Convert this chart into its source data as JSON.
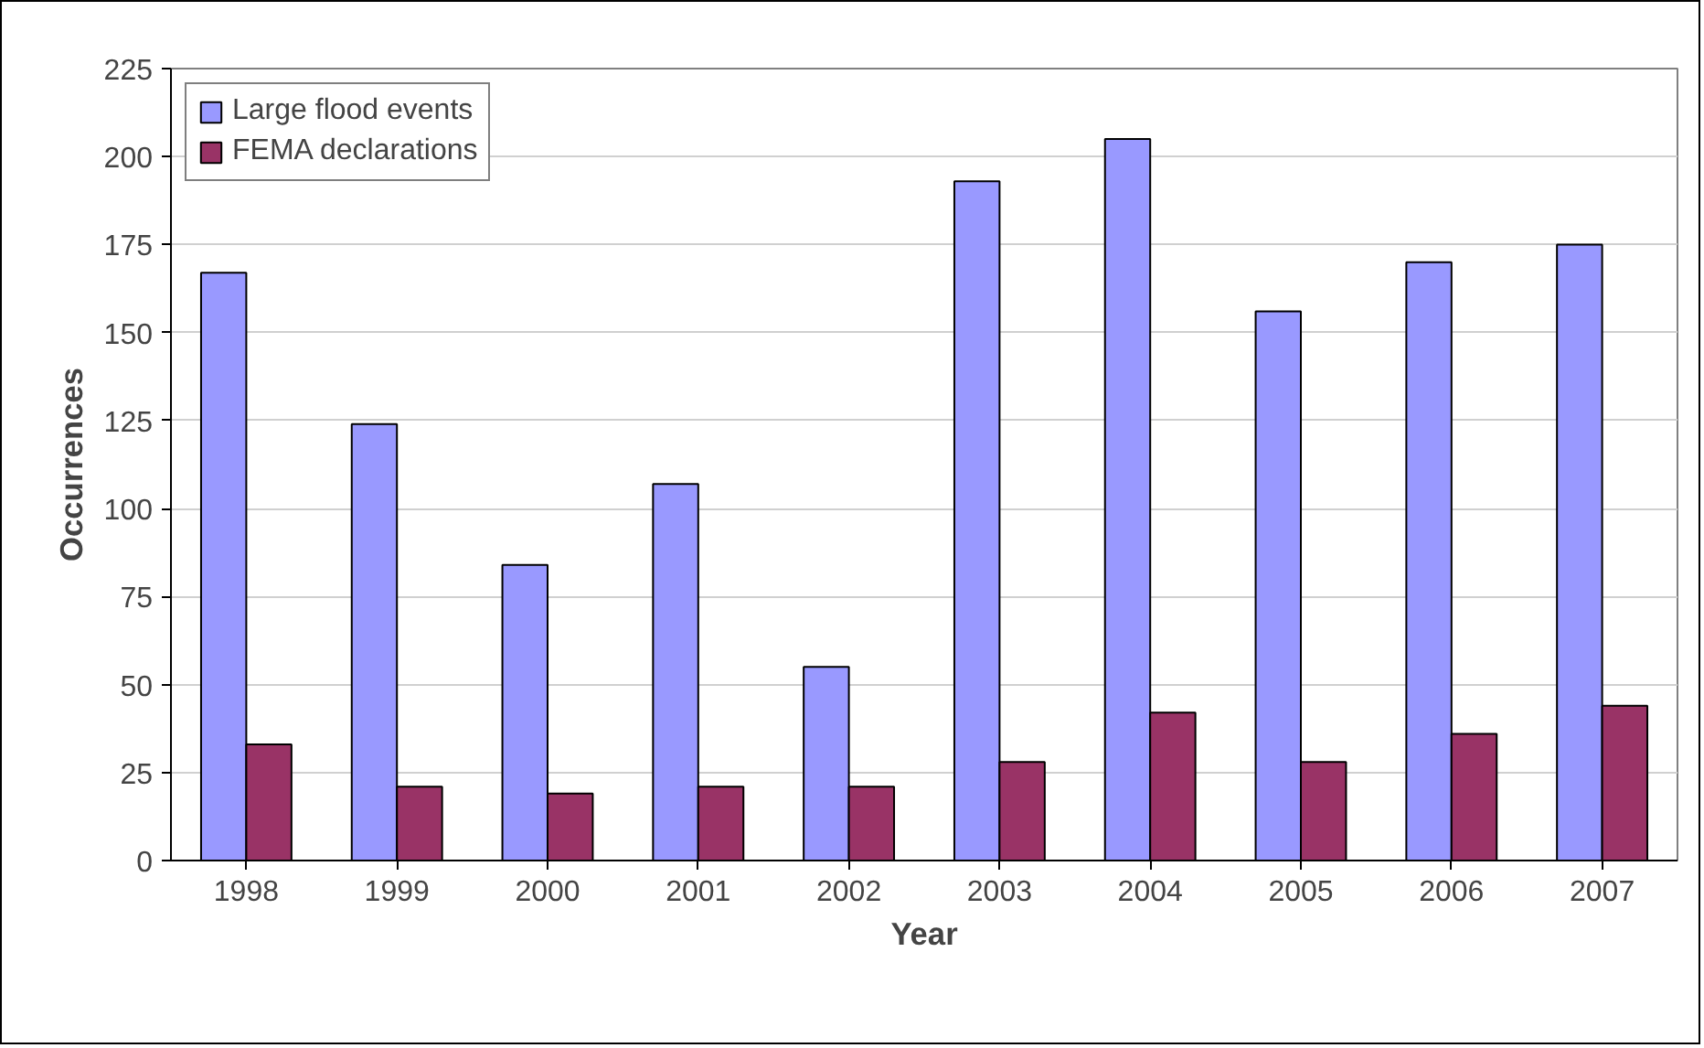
{
  "chart_data": {
    "type": "bar",
    "xlabel": "Year",
    "ylabel": "Occurrences",
    "categories": [
      "1998",
      "1999",
      "2000",
      "2001",
      "2002",
      "2003",
      "2004",
      "2005",
      "2006",
      "2007"
    ],
    "series": [
      {
        "name": "Large flood events",
        "color": "#9999ff",
        "values": [
          167,
          124,
          84,
          107,
          55,
          193,
          205,
          156,
          170,
          175
        ]
      },
      {
        "name": "FEMA declarations",
        "color": "#993366",
        "values": [
          33,
          21,
          19,
          21,
          21,
          28,
          42,
          28,
          36,
          44
        ]
      }
    ],
    "ylim": [
      0,
      225
    ],
    "yticks": [
      0,
      25,
      50,
      75,
      100,
      125,
      150,
      175,
      200,
      225
    ],
    "grid": "y",
    "legend": "top left"
  }
}
